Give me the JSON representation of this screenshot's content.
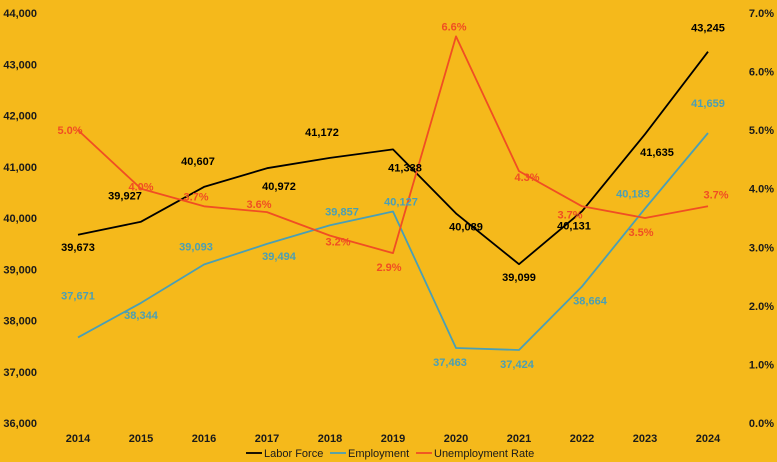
{
  "chart_data": {
    "type": "line",
    "categories": [
      "2014",
      "2015",
      "2016",
      "2017",
      "2018",
      "2019",
      "2020",
      "2021",
      "2022",
      "2023",
      "2024"
    ],
    "left_axis": {
      "ylim": [
        36000,
        44000
      ],
      "ticks": [
        "36,000",
        "37,000",
        "38,000",
        "39,000",
        "40,000",
        "41,000",
        "42,000",
        "43,000",
        "44,000"
      ]
    },
    "right_axis": {
      "ylim": [
        0,
        7
      ],
      "ticks": [
        "0.0%",
        "1.0%",
        "2.0%",
        "3.0%",
        "4.0%",
        "5.0%",
        "6.0%",
        "7.0%"
      ]
    },
    "series": [
      {
        "name": "Labor Force",
        "axis": "left",
        "color": "#000000",
        "values": [
          39673,
          39927,
          40607,
          40972,
          41172,
          41338,
          40089,
          39099,
          40131,
          41635,
          43245
        ],
        "labels": [
          "39,673",
          "39,927",
          "40,607",
          "40,972",
          "41,172",
          "41,338",
          "40,089",
          "39,099",
          "40,131",
          "41,635",
          "43,245"
        ]
      },
      {
        "name": "Employment",
        "axis": "left",
        "color": "#4A9FB5",
        "values": [
          37671,
          38344,
          39093,
          39494,
          39857,
          40127,
          37463,
          37424,
          38664,
          40183,
          41659
        ],
        "labels": [
          "37,671",
          "38,344",
          "39,093",
          "39,494",
          "39,857",
          "40,127",
          "37,463",
          "37,424",
          "38,664",
          "40,183",
          "41,659"
        ]
      },
      {
        "name": "Unemployment Rate",
        "axis": "right",
        "color": "#F04E23",
        "values": [
          5.0,
          4.0,
          3.7,
          3.6,
          3.2,
          2.9,
          6.6,
          4.3,
          3.7,
          3.5,
          3.7
        ],
        "labels": [
          "5.0%",
          "4.0%",
          "3.7%",
          "3.6%",
          "3.2%",
          "2.9%",
          "6.6%",
          "4.3%",
          "3.7%",
          "3.5%",
          "3.7%"
        ]
      }
    ],
    "legend": "bottom"
  }
}
